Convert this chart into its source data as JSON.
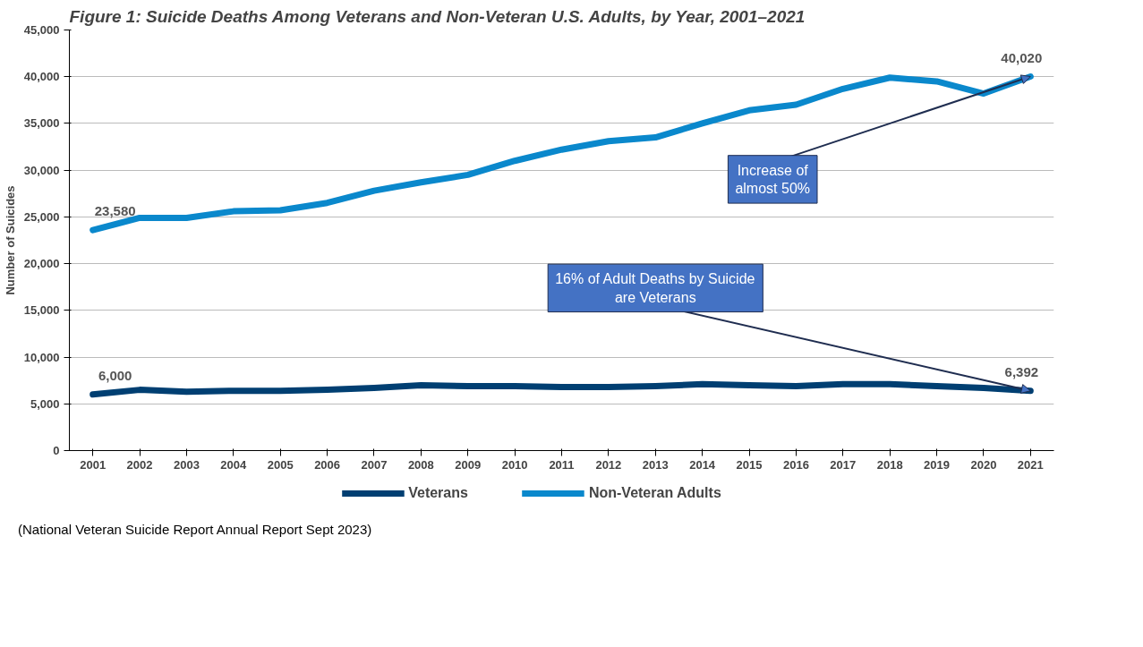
{
  "chart_data": {
    "type": "line",
    "title": "Figure 1: Suicide Deaths Among Veterans and Non-Veteran U.S. Adults, by Year, 2001–2021",
    "ylabel": "Number of Suicides",
    "categories": [
      "2001",
      "2002",
      "2003",
      "2004",
      "2005",
      "2006",
      "2007",
      "2008",
      "2009",
      "2010",
      "2011",
      "2012",
      "2013",
      "2014",
      "2015",
      "2016",
      "2017",
      "2018",
      "2019",
      "2020",
      "2021"
    ],
    "series": [
      {
        "name": "Veterans",
        "color": "#003f72",
        "values": [
          6000,
          6500,
          6300,
          6400,
          6400,
          6500,
          6700,
          7000,
          6900,
          6900,
          6800,
          6800,
          6900,
          7100,
          7000,
          6900,
          7100,
          7100,
          6900,
          6700,
          6392
        ],
        "value_labels": [
          "6,000",
          null,
          null,
          null,
          null,
          null,
          null,
          null,
          null,
          null,
          null,
          null,
          null,
          null,
          null,
          null,
          null,
          null,
          null,
          null,
          "6,392"
        ]
      },
      {
        "name": "Non-Veteran Adults",
        "color": "#0a88cc",
        "values": [
          23580,
          24900,
          24900,
          25600,
          25700,
          26500,
          27800,
          28700,
          29500,
          31000,
          32200,
          33100,
          33500,
          35000,
          36400,
          37000,
          38700,
          39900,
          39500,
          38200,
          40020
        ],
        "value_labels": [
          "23,580",
          null,
          null,
          null,
          null,
          null,
          null,
          null,
          null,
          null,
          null,
          null,
          null,
          null,
          null,
          null,
          null,
          null,
          null,
          null,
          "40,020"
        ]
      }
    ],
    "ylim": [
      0,
      45000
    ],
    "yticks": [
      {
        "value": 0,
        "label": "0"
      },
      {
        "value": 5000,
        "label": "5,000"
      },
      {
        "value": 10000,
        "label": "10,000"
      },
      {
        "value": 15000,
        "label": "15,000"
      },
      {
        "value": 20000,
        "label": "20,000"
      },
      {
        "value": 25000,
        "label": "25,000"
      },
      {
        "value": 30000,
        "label": "30,000"
      },
      {
        "value": 35000,
        "label": "35,000"
      },
      {
        "value": 40000,
        "label": "40,000"
      },
      {
        "value": 45000,
        "label": "45,000"
      }
    ],
    "grid": "y",
    "legend": "bottom",
    "marker": "none",
    "line_style": "solid",
    "annotations": [
      {
        "text": "Increase of\nalmost 50%",
        "x": "2021",
        "y": 40020
      },
      {
        "text": "16% of Adult Deaths by Suicide\nare Veterans",
        "x": "2021",
        "y": 6392
      },
      "(National Veteran Suicide Report Annual Report Sept 2023)"
    ]
  }
}
